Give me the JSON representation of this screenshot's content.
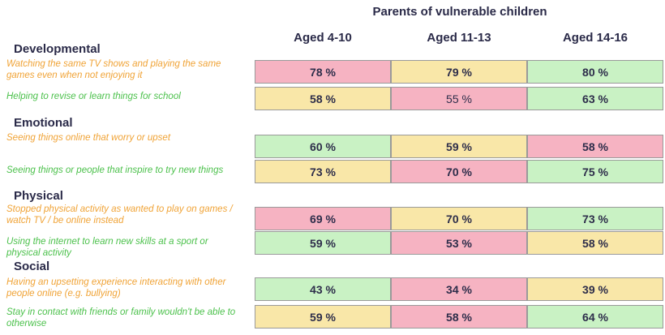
{
  "chart_data": {
    "type": "table",
    "title": "Parents of vulnerable children",
    "columns": [
      "Aged 4-10",
      "Aged 11-13",
      "Aged 14-16"
    ],
    "colors": {
      "red": "#f6b3c2",
      "yellow": "#f9e7a8",
      "green": "#c9f2c4",
      "orange_text": "#f0a336",
      "green_text": "#4cc14c"
    },
    "sections": [
      {
        "name": "Developmental",
        "rows": [
          {
            "label": "Watching the same TV shows and playing the same games even when not enjoying it",
            "label_color": "orange",
            "values": [
              "78 %",
              "79 %",
              "80 %"
            ],
            "colors": [
              "red",
              "yellow",
              "green"
            ]
          },
          {
            "label": "Helping to revise or learn things for school",
            "label_color": "green",
            "values": [
              "58 %",
              "55 %",
              "63 %"
            ],
            "colors": [
              "yellow",
              "red",
              "green"
            ]
          }
        ]
      },
      {
        "name": "Emotional",
        "rows": [
          {
            "label": "Seeing things online that worry or upset",
            "label_color": "orange",
            "values": [
              "60 %",
              "59 %",
              "58 %"
            ],
            "colors": [
              "green",
              "yellow",
              "red"
            ]
          },
          {
            "label": "Seeing things or people that inspire to try new things",
            "label_color": "green",
            "values": [
              "73 %",
              "70 %",
              "75 %"
            ],
            "colors": [
              "yellow",
              "red",
              "green"
            ]
          }
        ]
      },
      {
        "name": "Physical",
        "rows": [
          {
            "label": "Stopped physical activity as wanted to play on games / watch TV / be online instead",
            "label_color": "orange",
            "values": [
              "69 %",
              "70 %",
              "73 %"
            ],
            "colors": [
              "red",
              "yellow",
              "green"
            ]
          },
          {
            "label": "Using the internet to learn new skills at a sport or physical activity",
            "label_color": "green",
            "values": [
              "59 %",
              "53 %",
              "58 %"
            ],
            "colors": [
              "green",
              "red",
              "yellow"
            ]
          }
        ]
      },
      {
        "name": "Social",
        "rows": [
          {
            "label": "Having an upsetting experience interacting with other people online (e.g. bullying)",
            "label_color": "orange",
            "values": [
              "43 %",
              "34 %",
              "39 %"
            ],
            "colors": [
              "green",
              "red",
              "yellow"
            ]
          },
          {
            "label": "Stay in contact with friends or family wouldn't be able to otherwise",
            "label_color": "green",
            "values": [
              "59 %",
              "58 %",
              "64 %"
            ],
            "colors": [
              "yellow",
              "red",
              "green"
            ]
          }
        ]
      }
    ]
  }
}
